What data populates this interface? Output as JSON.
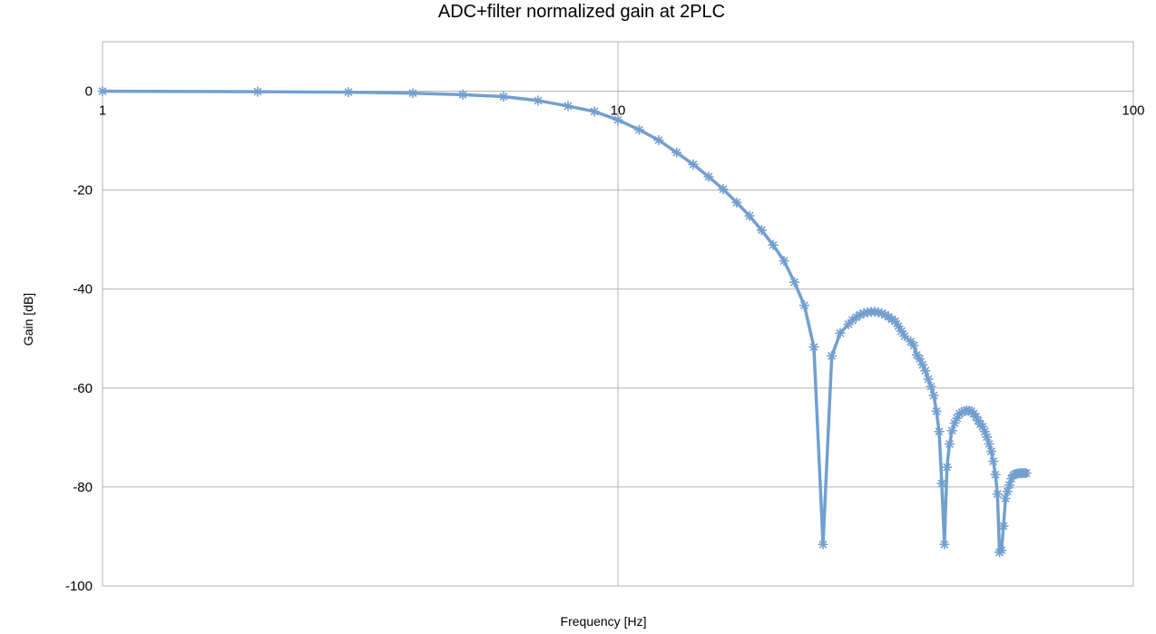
{
  "chart_data": {
    "type": "line",
    "title": "ADC+filter normalized gain at 2PLC",
    "xlabel": "Frequency [Hz]",
    "ylabel": "Gain [dB]",
    "x_scale": "log",
    "xlim": [
      1,
      100
    ],
    "ylim": [
      -100,
      10
    ],
    "x_ticks": [
      1,
      10,
      100
    ],
    "x_tick_labels": [
      "1",
      "10",
      "100"
    ],
    "y_ticks": [
      -100,
      -80,
      -60,
      -40,
      -20,
      0
    ],
    "y_tick_labels": [
      "-100",
      "-80",
      "-60",
      "-40",
      "-20",
      "0"
    ],
    "grid": true,
    "legend": "none",
    "line_color": "#729fcf",
    "marker": "asterisk",
    "series": [
      {
        "x": [
          1.0,
          2.0,
          3.0,
          4.0,
          5.0,
          6.0,
          7.0,
          8.0,
          9.0,
          10.0,
          11.0,
          12.0,
          13.0,
          14.0,
          15.0,
          16.0,
          17.0,
          18.0,
          19.0,
          20.0,
          21.0,
          22.0,
          23.0,
          24.0,
          25.0,
          26.0,
          27.0,
          28.0,
          28.5,
          29.0,
          29.5,
          30.0,
          30.5,
          31.0,
          31.5,
          32.0,
          32.5,
          33.0,
          33.5,
          34.0,
          34.5,
          35.0,
          35.5,
          36.0,
          37.0,
          37.5,
          38.0,
          38.5,
          39.0,
          39.5,
          40.0,
          40.5,
          41.0,
          41.5,
          42.0,
          42.5,
          43.0,
          43.5,
          44.0,
          44.5,
          45.0,
          45.5,
          46.0,
          46.5,
          47.0,
          47.5,
          48.0,
          48.5,
          49.0,
          49.5,
          50.0,
          50.5,
          51.0,
          51.5,
          52.0,
          52.5,
          53.0,
          53.5,
          54.0,
          54.5,
          55.0,
          55.5,
          56.0,
          56.5,
          57.0,
          57.5,
          58.0,
          58.5,
          59.0,
          59.5,
          60.0,
          60.5,
          61.0,
          61.5,
          62.0
        ],
        "y": [
          0.0,
          -0.1,
          -0.2,
          -0.4,
          -0.7,
          -1.1,
          -1.9,
          -3.0,
          -4.1,
          -5.8,
          -7.8,
          -9.9,
          -12.4,
          -14.8,
          -17.3,
          -19.8,
          -22.5,
          -25.2,
          -28.1,
          -31.1,
          -34.3,
          -38.6,
          -43.3,
          -51.7,
          -91.6,
          -53.5,
          -48.9,
          -47.1,
          -46.3,
          -45.7,
          -45.2,
          -44.9,
          -44.7,
          -44.6,
          -44.6,
          -44.7,
          -44.9,
          -45.2,
          -45.6,
          -46.1,
          -46.5,
          -47.5,
          -48.5,
          -49.5,
          -50.6,
          -51.4,
          -53.3,
          -54.1,
          -55.3,
          -56.5,
          -58.2,
          -59.7,
          -61.5,
          -64.7,
          -68.8,
          -79.3,
          -91.6,
          -76.0,
          -71.3,
          -68.6,
          -67.1,
          -66.1,
          -65.2,
          -64.9,
          -64.7,
          -64.5,
          -64.6,
          -64.7,
          -65.2,
          -65.8,
          -66.6,
          -67.3,
          -67.8,
          -68.8,
          -69.9,
          -71.3,
          -72.8,
          -74.8,
          -77.5,
          -81.4,
          -93.2,
          -92.8,
          -87.9,
          -82.3,
          -80.9,
          -79.6,
          -78.3,
          -77.6,
          -77.4,
          -77.3,
          -77.2,
          -77.2,
          -77.2,
          -77.2,
          -77.2
        ]
      }
    ]
  }
}
